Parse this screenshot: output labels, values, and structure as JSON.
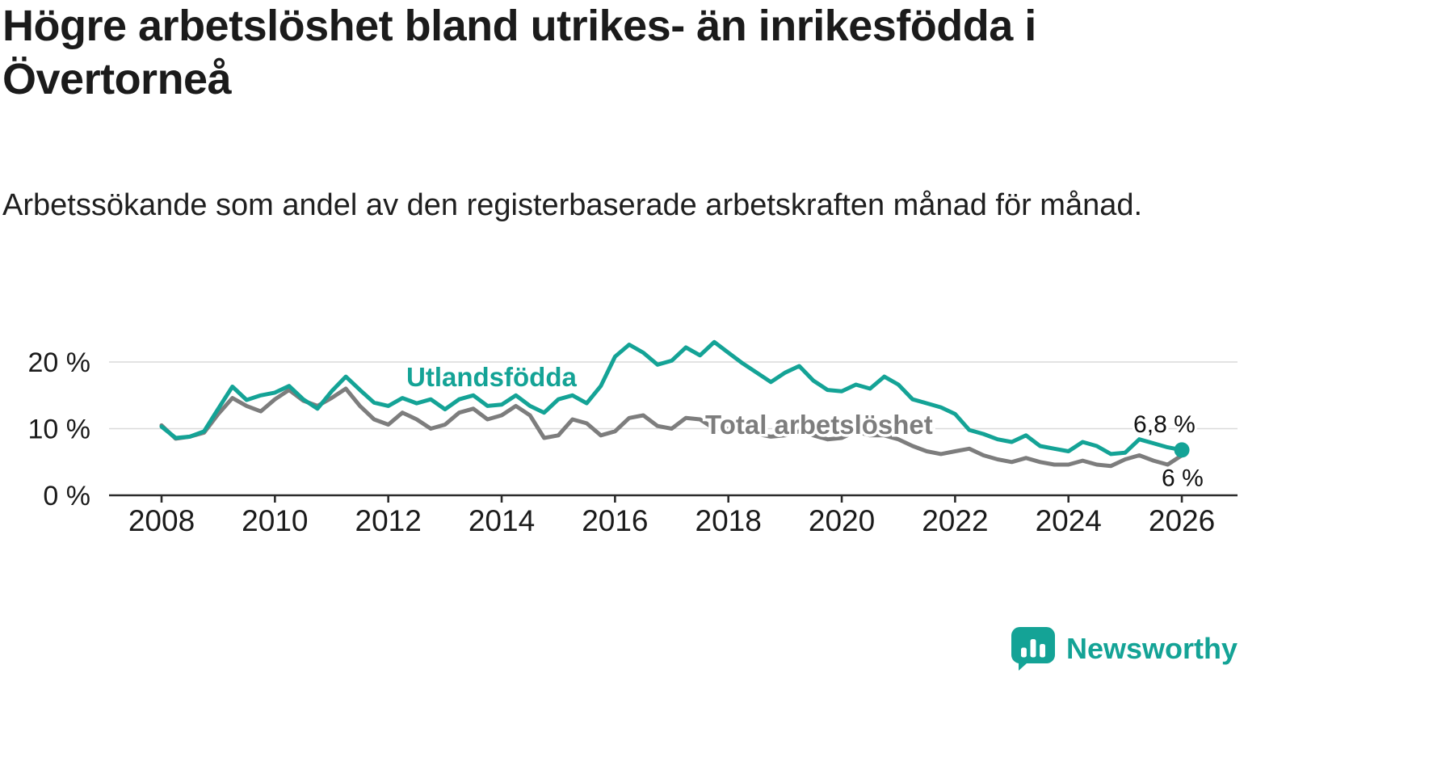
{
  "header": {
    "title": "Högre arbetslöshet bland utrikes- än inrikesfödda i Övertorneå",
    "subtitle": "Arbetssökande som andel av den registerbaserade arbetskraften månad för månad."
  },
  "footer": {
    "brand": "Newsworthy",
    "logo_icon": "bar-chart-speech-bubble"
  },
  "colors": {
    "accent_teal": "#14a396",
    "series_gray": "#7d7d7d",
    "grid": "#dadada",
    "axis": "#2b2b2b",
    "text": "#1b1b1b"
  },
  "chart_data": {
    "type": "line",
    "x_unit": "year",
    "x_start": 2008,
    "x_step_years": 0.25,
    "xlim": [
      2007.1,
      2027
    ],
    "ylim": [
      0,
      25
    ],
    "grid": true,
    "legend_position": "inline-labels",
    "yticks": [
      {
        "value": 0,
        "label": "0 %"
      },
      {
        "value": 10,
        "label": "10 %"
      },
      {
        "value": 20,
        "label": "20 %"
      }
    ],
    "xticks": [
      {
        "value": 2008,
        "label": "2008"
      },
      {
        "value": 2010,
        "label": "2010"
      },
      {
        "value": 2012,
        "label": "2012"
      },
      {
        "value": 2014,
        "label": "2014"
      },
      {
        "value": 2016,
        "label": "2016"
      },
      {
        "value": 2018,
        "label": "2018"
      },
      {
        "value": 2020,
        "label": "2020"
      },
      {
        "value": 2022,
        "label": "2022"
      },
      {
        "value": 2024,
        "label": "2024"
      },
      {
        "value": 2026,
        "label": "2026"
      }
    ],
    "series": [
      {
        "name": "Utlandsfödda",
        "color": "#14a396",
        "values": [
          10.3,
          8.6,
          8.8,
          9.6,
          13.0,
          16.3,
          14.3,
          15.0,
          15.4,
          16.4,
          14.4,
          13.0,
          15.6,
          17.8,
          15.8,
          13.9,
          13.4,
          14.6,
          13.8,
          14.4,
          12.9,
          14.4,
          15.0,
          13.4,
          13.6,
          15.0,
          13.4,
          12.4,
          14.4,
          15.0,
          13.8,
          16.4,
          20.8,
          22.6,
          21.4,
          19.6,
          20.2,
          22.2,
          21.0,
          23.0,
          21.4,
          19.8,
          18.4,
          17.0,
          18.4,
          19.4,
          17.2,
          15.8,
          15.6,
          16.6,
          16.0,
          17.8,
          16.6,
          14.4,
          13.8,
          13.2,
          12.2,
          9.8,
          9.2,
          8.4,
          8.0,
          9.0,
          7.4,
          7.0,
          6.6,
          8.0,
          7.4,
          6.2,
          6.4,
          8.4,
          7.8,
          7.2,
          6.8
        ]
      },
      {
        "name": "Total arbetslöshet",
        "color": "#7d7d7d",
        "values": [
          10.5,
          8.5,
          8.8,
          9.4,
          12.2,
          14.6,
          13.4,
          12.6,
          14.4,
          15.8,
          14.2,
          13.4,
          14.6,
          16.0,
          13.4,
          11.4,
          10.6,
          12.4,
          11.4,
          10.0,
          10.6,
          12.4,
          13.0,
          11.4,
          12.0,
          13.4,
          12.0,
          8.6,
          9.0,
          11.4,
          10.8,
          9.0,
          9.6,
          11.6,
          12.0,
          10.4,
          10.0,
          11.6,
          11.4,
          10.0,
          10.0,
          9.6,
          9.2,
          8.8,
          9.0,
          9.6,
          9.0,
          8.4,
          8.6,
          9.6,
          9.0,
          9.0,
          8.4,
          7.4,
          6.6,
          6.2,
          6.6,
          7.0,
          6.0,
          5.4,
          5.0,
          5.6,
          5.0,
          4.6,
          4.6,
          5.2,
          4.6,
          4.4,
          5.4,
          6.0,
          5.2,
          4.6,
          6.0
        ]
      }
    ],
    "end_labels": [
      {
        "series": "Utlandsfödda",
        "text": "6,8 %"
      },
      {
        "series": "Total arbetslöshet",
        "text": "6 %"
      }
    ],
    "end_marker": {
      "series": "Utlandsfödda",
      "shape": "dot"
    }
  }
}
